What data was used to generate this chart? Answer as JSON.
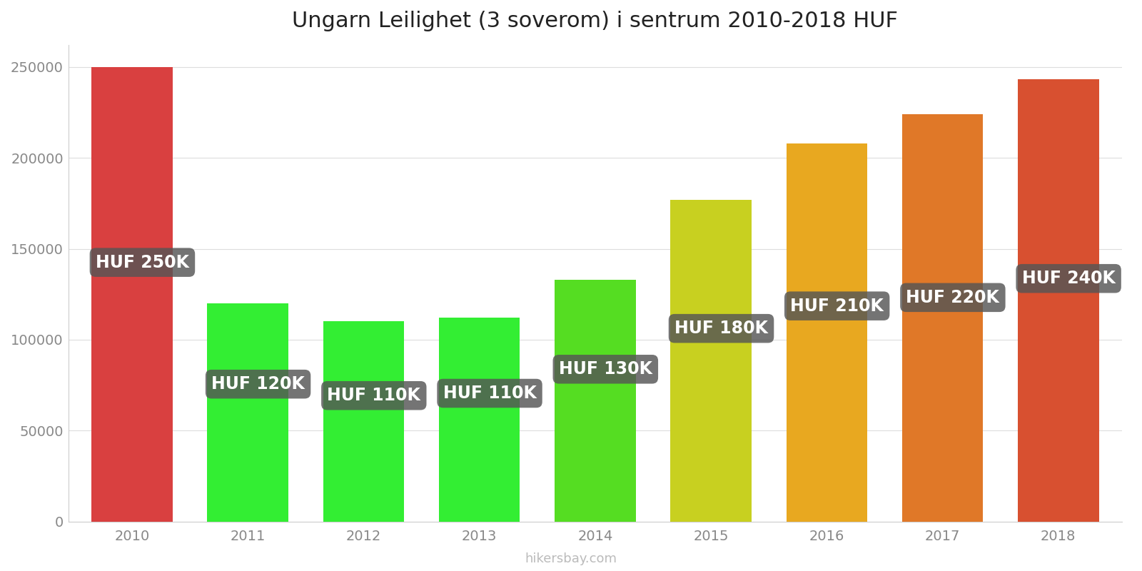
{
  "title": "Ungarn Leilighet (3 soverom) i sentrum 2010-2018 HUF",
  "years": [
    2010,
    2011,
    2012,
    2013,
    2014,
    2015,
    2016,
    2017,
    2018
  ],
  "values": [
    250000,
    120000,
    110000,
    112000,
    133000,
    177000,
    208000,
    224000,
    243000
  ],
  "labels": [
    "HUF 250K",
    "HUF 120K",
    "HUF 110K",
    "HUF 110K",
    "HUF 130K",
    "HUF 180K",
    "HUF 210K",
    "HUF 220K",
    "HUF 240K"
  ],
  "bar_colors": [
    "#d94040",
    "#33ee33",
    "#33ee33",
    "#33ee33",
    "#55dd22",
    "#c8d020",
    "#e8a820",
    "#e07828",
    "#d85030"
  ],
  "label_y_fracs": [
    0.57,
    0.63,
    0.63,
    0.63,
    0.63,
    0.6,
    0.57,
    0.55,
    0.55
  ],
  "ylim": [
    0,
    262000
  ],
  "background_color": "#ffffff",
  "title_fontsize": 22,
  "tick_fontsize": 14,
  "label_bg_color": "#555555",
  "label_text_color": "#ffffff",
  "label_fontsize": 17,
  "watermark": "hikersbay.com",
  "watermark_color": "#bbbbbb",
  "bar_width": 0.7
}
